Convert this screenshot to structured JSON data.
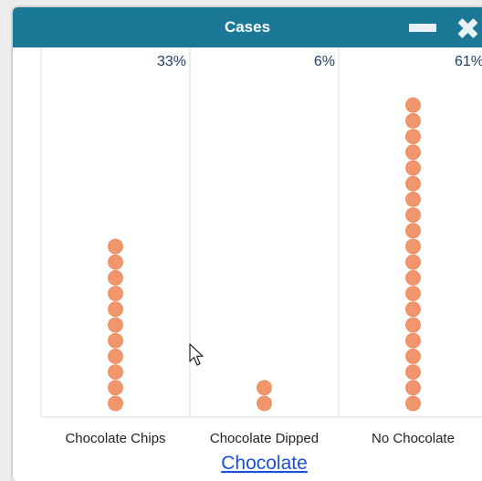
{
  "window": {
    "title": "Cases"
  },
  "colors": {
    "titlebar": "#1b7896",
    "dot": "#f0956c",
    "dot_edge": "#e88a5e",
    "percent_text": "#1f3d63",
    "axis_title": "#1a4fd6",
    "divider": "#dcdcdc"
  },
  "icons": {
    "minimize": "minimize-icon",
    "close": "close-icon",
    "cursor": "mouse-pointer-icon"
  },
  "chart_data": {
    "type": "dot",
    "xlabel": "Chocolate",
    "categories": [
      "Chocolate Chips",
      "Chocolate Dipped",
      "No Chocolate"
    ],
    "values": [
      11,
      2,
      20
    ],
    "percent_labels": [
      "33%",
      "6%",
      "61%"
    ]
  }
}
